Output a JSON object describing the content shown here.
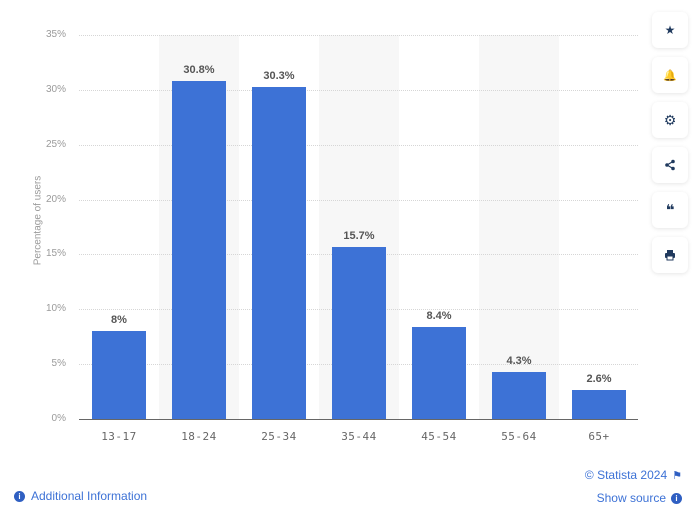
{
  "chart_data": {
    "type": "bar",
    "title": "",
    "xlabel": "",
    "ylabel": "Percentage of users",
    "categories": [
      "13-17",
      "18-24",
      "25-34",
      "35-44",
      "45-54",
      "55-64",
      "65+"
    ],
    "values": [
      8,
      30.8,
      30.3,
      15.7,
      8.4,
      4.3,
      2.6
    ],
    "value_labels": [
      "8%",
      "30.8%",
      "30.3%",
      "15.7%",
      "8.4%",
      "4.3%",
      "2.6%"
    ],
    "ylim": [
      0,
      35
    ],
    "yticks": [
      "0%",
      "5%",
      "10%",
      "15%",
      "20%",
      "25%",
      "30%",
      "35%"
    ],
    "grid": true,
    "bar_color": "#3d72d6"
  },
  "toolbar": {
    "items": [
      {
        "icon": "star-icon",
        "glyph": "★"
      },
      {
        "icon": "bell-icon",
        "glyph": "🔔"
      },
      {
        "icon": "gear-icon",
        "glyph": "⚙"
      },
      {
        "icon": "share-icon",
        "glyph": "<"
      },
      {
        "icon": "quote-icon",
        "glyph": "❝"
      },
      {
        "icon": "print-icon",
        "glyph": "⎙"
      }
    ]
  },
  "footer": {
    "copyright": "© Statista 2024",
    "show_source": "Show source",
    "additional_info": "Additional Information",
    "info_glyph": "i",
    "flag_glyph": "⚑"
  }
}
